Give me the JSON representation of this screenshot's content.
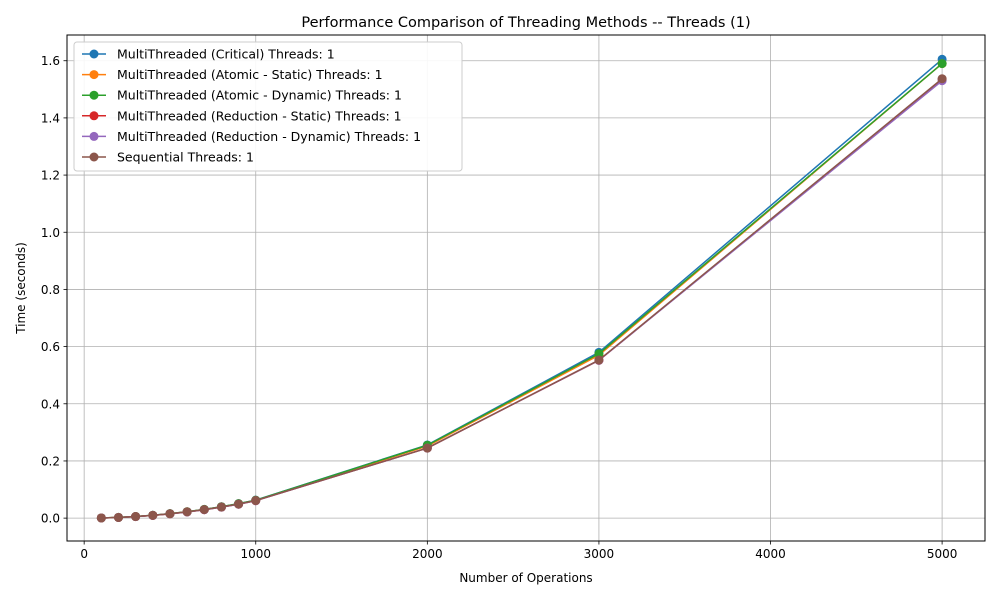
{
  "chart_data": {
    "type": "line",
    "title": "Performance Comparison of Threading Methods -- Threads (1)",
    "xlabel": "Number of Operations",
    "ylabel": "Time (seconds)",
    "xlim": [
      -100,
      5250
    ],
    "ylim": [
      -0.08,
      1.69
    ],
    "x_ticks": [
      0,
      1000,
      2000,
      3000,
      4000,
      5000
    ],
    "y_ticks": [
      0.0,
      0.2,
      0.4,
      0.6,
      0.8,
      1.0,
      1.2,
      1.4,
      1.6
    ],
    "x_tick_labels": [
      "0",
      "1000",
      "2000",
      "3000",
      "4000",
      "5000"
    ],
    "y_tick_labels": [
      "0.0",
      "0.2",
      "0.4",
      "0.6",
      "0.8",
      "1.0",
      "1.2",
      "1.4",
      "1.6"
    ],
    "grid": true,
    "legend_position": "top-left",
    "x": [
      100,
      200,
      300,
      400,
      500,
      600,
      700,
      800,
      900,
      1000,
      2000,
      3000,
      5000
    ],
    "series": [
      {
        "name": "MultiThreaded (Critical) Threads: 1",
        "color": "#1f77b4",
        "values": [
          0.0006,
          0.0025,
          0.0056,
          0.01,
          0.0156,
          0.0225,
          0.0306,
          0.04,
          0.0506,
          0.063,
          0.256,
          0.58,
          1.605
        ]
      },
      {
        "name": "MultiThreaded (Atomic - Static) Threads: 1",
        "color": "#ff7f0e",
        "values": [
          0.0006,
          0.0025,
          0.0055,
          0.0098,
          0.0154,
          0.0222,
          0.0302,
          0.0394,
          0.0499,
          0.062,
          0.252,
          0.57,
          1.59
        ]
      },
      {
        "name": "MultiThreaded (Atomic - Dynamic) Threads: 1",
        "color": "#2ca02c",
        "values": [
          0.0006,
          0.0025,
          0.0056,
          0.01,
          0.0156,
          0.0225,
          0.0306,
          0.04,
          0.0506,
          0.0625,
          0.255,
          0.575,
          1.59
        ]
      },
      {
        "name": "MultiThreaded (Reduction - Static) Threads: 1",
        "color": "#d62728",
        "values": [
          0.0006,
          0.0024,
          0.0054,
          0.0096,
          0.015,
          0.0216,
          0.0294,
          0.0384,
          0.0486,
          0.061,
          0.245,
          0.552,
          1.535
        ]
      },
      {
        "name": "MultiThreaded (Reduction - Dynamic) Threads: 1",
        "color": "#9467bd",
        "values": [
          0.0006,
          0.0024,
          0.0054,
          0.0096,
          0.015,
          0.0216,
          0.0294,
          0.0384,
          0.0486,
          0.061,
          0.245,
          0.552,
          1.53
        ]
      },
      {
        "name": "Sequential Threads: 1",
        "color": "#8c564b",
        "values": [
          0.0006,
          0.0024,
          0.0055,
          0.0097,
          0.0152,
          0.0219,
          0.0298,
          0.0389,
          0.0492,
          0.0615,
          0.245,
          0.553,
          1.537
        ]
      }
    ]
  }
}
